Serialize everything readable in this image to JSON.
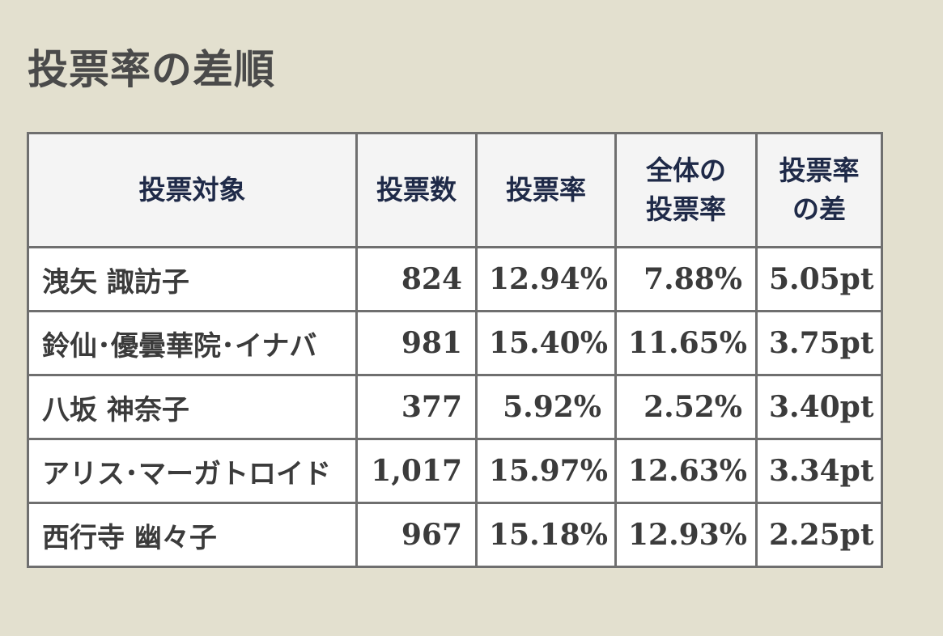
{
  "title": "投票率の差順",
  "table": {
    "headers": {
      "target": "投票対象",
      "votes": "投票数",
      "rate": "投票率",
      "overall_rate_line1": "全体の",
      "overall_rate_line2": "投票率",
      "diff_line1": "投票率",
      "diff_line2": "の差"
    },
    "rows": [
      {
        "name": "洩矢 諏訪子",
        "votes": "824",
        "rate": "12.94%",
        "overall": "7.88%",
        "diff": "5.05pt"
      },
      {
        "name": "鈴仙･優曇華院･イナバ",
        "votes": "981",
        "rate": "15.40%",
        "overall": "11.65%",
        "diff": "3.75pt"
      },
      {
        "name": "八坂 神奈子",
        "votes": "377",
        "rate": "5.92%",
        "overall": "2.52%",
        "diff": "3.40pt"
      },
      {
        "name": "アリス･マーガトロイド",
        "votes": "1,017",
        "rate": "15.97%",
        "overall": "12.63%",
        "diff": "3.34pt"
      },
      {
        "name": "西行寺 幽々子",
        "votes": "967",
        "rate": "15.18%",
        "overall": "12.93%",
        "diff": "2.25pt"
      }
    ]
  }
}
